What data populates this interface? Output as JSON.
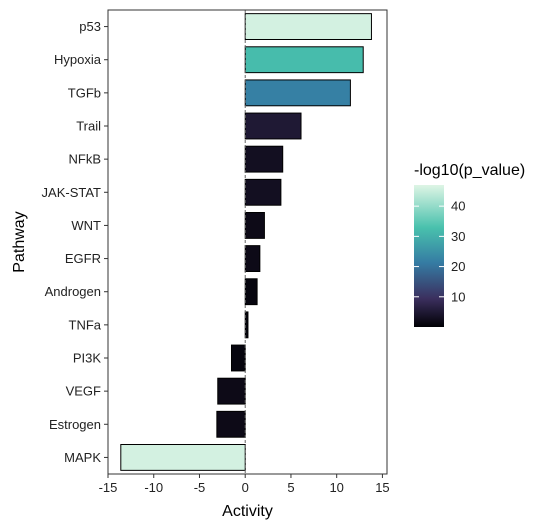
{
  "chart_data": {
    "type": "bar",
    "orientation": "horizontal",
    "xlabel": "Activity",
    "ylabel": "Pathway",
    "xlim": [
      -15,
      15.5
    ],
    "x_ticks": [
      -15,
      -10,
      -5,
      0,
      5,
      10,
      15
    ],
    "x_tick_labels": [
      "-15",
      "-10",
      "-5",
      "0",
      "5",
      "10",
      "15"
    ],
    "grid": false,
    "categories": [
      "p53",
      "Hypoxia",
      "TGFb",
      "Trail",
      "NFkB",
      "JAK-STAT",
      "WNT",
      "EGFR",
      "Androgen",
      "TNFa",
      "PI3K",
      "VEGF",
      "Estrogen",
      "MAPK"
    ],
    "values": [
      13.8,
      12.9,
      11.5,
      6.1,
      4.1,
      3.9,
      2.1,
      1.6,
      1.3,
      0.3,
      -1.5,
      -3.0,
      -3.1,
      -13.6
    ],
    "neg_log10_p_value": [
      46,
      32,
      22,
      5,
      3,
      3,
      2,
      2,
      1,
      1,
      1,
      2,
      2,
      46
    ],
    "legend": {
      "title": "-log10(p_value)",
      "placement": "right",
      "ticks": [
        40,
        30,
        20,
        10
      ],
      "tick_labels": [
        "40",
        "30",
        "20",
        "10"
      ],
      "range": [
        0,
        47
      ],
      "colors": [
        "#000004",
        "#3b2f5e",
        "#357ba3",
        "#49c1ad",
        "#def5e5"
      ]
    }
  }
}
